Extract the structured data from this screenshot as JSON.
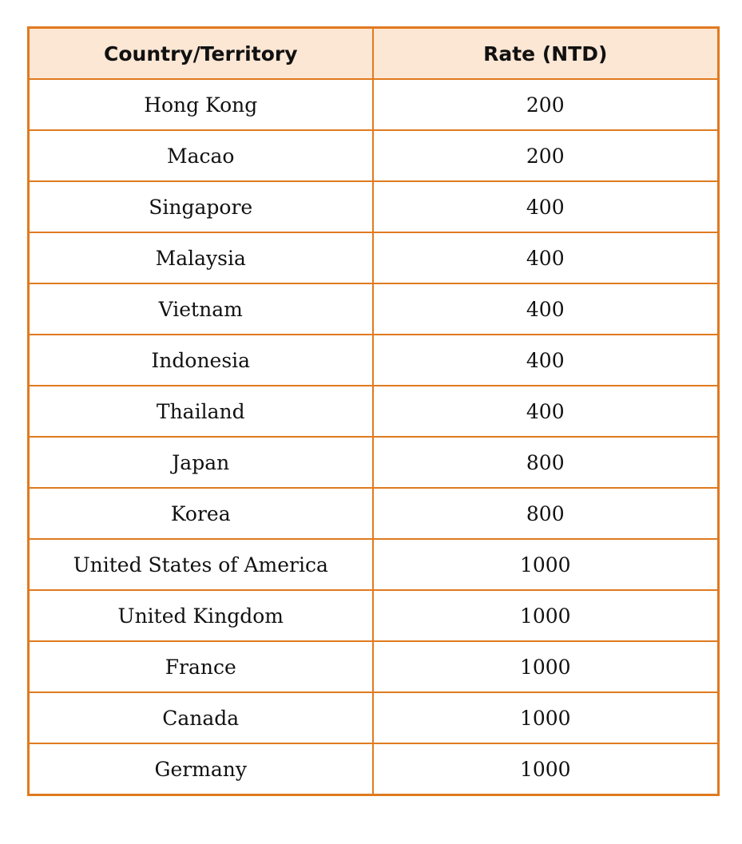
{
  "table": {
    "headers": [
      "Country/Territory",
      "Rate (NTD)"
    ],
    "rows": [
      [
        "Hong Kong",
        "200"
      ],
      [
        "Macao",
        "200"
      ],
      [
        "Singapore",
        "400"
      ],
      [
        "Malaysia",
        "400"
      ],
      [
        "Vietnam",
        "400"
      ],
      [
        "Indonesia",
        "400"
      ],
      [
        "Thailand",
        "400"
      ],
      [
        "Japan",
        "800"
      ],
      [
        "Korea",
        "800"
      ],
      [
        "United States of America",
        "1000"
      ],
      [
        "United Kingdom",
        "1000"
      ],
      [
        "France",
        "1000"
      ],
      [
        "Canada",
        "1000"
      ],
      [
        "Germany",
        "1000"
      ]
    ]
  },
  "colors": {
    "border": "#e07a1f",
    "header_background": "#fce6d4",
    "text": "#111111"
  }
}
